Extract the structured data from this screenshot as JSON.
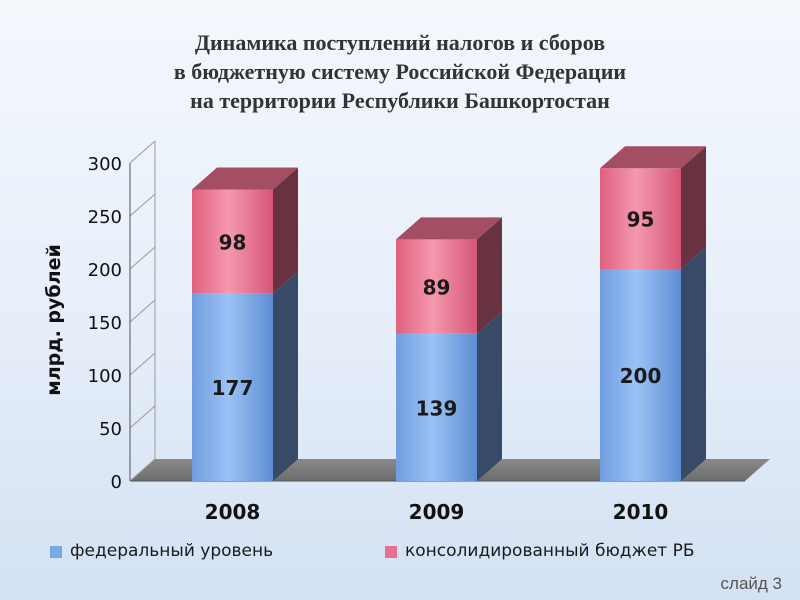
{
  "title": [
    "Динамика поступлений налогов и сборов",
    "в бюджетную систему Российской Федерации",
    "на территории Республики Башкортостан"
  ],
  "chart_data": {
    "type": "bar",
    "stacked": true,
    "categories": [
      "2008",
      "2009",
      "2010"
    ],
    "series": [
      {
        "name": "федеральный уровень",
        "values": [
          177,
          139,
          200
        ],
        "color": "#7aa7e6"
      },
      {
        "name": "консолидированный бюджет РБ",
        "values": [
          98,
          89,
          95
        ],
        "color": "#ea6f8e"
      }
    ],
    "ylabel": "млрд. рублей",
    "yticks": [
      0,
      50,
      100,
      150,
      200,
      250,
      300
    ],
    "ylim": [
      0,
      300
    ],
    "legend": "bottom",
    "grid": true
  },
  "legend": [
    {
      "label": "федеральный уровень",
      "color": "#7aa7e6"
    },
    {
      "label": "консолидированный бюджет РБ",
      "color": "#ea6f8e"
    }
  ],
  "slide_label": "слайд 3"
}
